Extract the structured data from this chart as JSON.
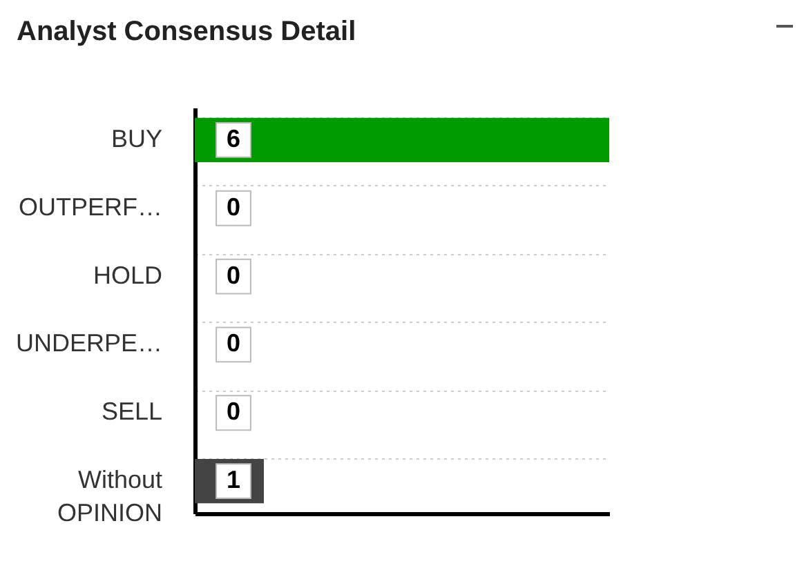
{
  "chart_data": {
    "type": "bar",
    "orientation": "horizontal",
    "title": "Analyst Consensus Detail",
    "categories": [
      "BUY",
      "OUTPERF…",
      "HOLD",
      "UNDERPE…",
      "SELL",
      "Without OPINION"
    ],
    "values": [
      6,
      0,
      0,
      0,
      0,
      1
    ],
    "colors": [
      "#009900",
      "#009900",
      "#009900",
      "#009900",
      "#009900",
      "#444444"
    ],
    "data_labels": true,
    "grid": "y"
  }
}
